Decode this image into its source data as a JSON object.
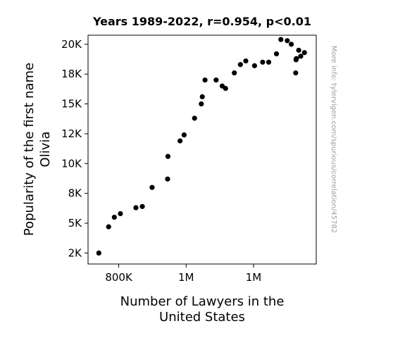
{
  "chart_data": {
    "type": "scatter",
    "title": "Years 1989-2022, r=0.954, p<0.01",
    "xlabel": [
      "Number of Lawyers in the",
      "United States"
    ],
    "ylabel": [
      "Popularity of the first name",
      "Olivia"
    ],
    "watermark": "More info: tylervigen.com/spurious/correlation/45782",
    "x_ticks": [
      {
        "value": 800000,
        "label": "800K"
      },
      {
        "value": 1000000,
        "label": "1M"
      },
      {
        "value": 1200000,
        "label": "1M"
      }
    ],
    "y_ticks": [
      {
        "value": 2500,
        "label": "2K"
      },
      {
        "value": 5000,
        "label": "5K"
      },
      {
        "value": 7500,
        "label": "8K"
      },
      {
        "value": 10000,
        "label": "10K"
      },
      {
        "value": 12500,
        "label": "12K"
      },
      {
        "value": 15000,
        "label": "15K"
      },
      {
        "value": 17500,
        "label": "18K"
      },
      {
        "value": 20000,
        "label": "20K"
      }
    ],
    "xlim": [
      709000,
      1386000
    ],
    "ylim": [
      1580,
      20760
    ],
    "marker_color": "#000000",
    "grid": false,
    "points": [
      {
        "x": 741000,
        "y": 2500
      },
      {
        "x": 770000,
        "y": 4700
      },
      {
        "x": 787000,
        "y": 5500
      },
      {
        "x": 805000,
        "y": 5800
      },
      {
        "x": 851000,
        "y": 6300
      },
      {
        "x": 870000,
        "y": 6400
      },
      {
        "x": 899000,
        "y": 8000
      },
      {
        "x": 945000,
        "y": 8700
      },
      {
        "x": 946000,
        "y": 10600
      },
      {
        "x": 982000,
        "y": 11900
      },
      {
        "x": 994000,
        "y": 12400
      },
      {
        "x": 1025000,
        "y": 13800
      },
      {
        "x": 1045000,
        "y": 15000
      },
      {
        "x": 1048000,
        "y": 15600
      },
      {
        "x": 1056000,
        "y": 17000
      },
      {
        "x": 1089000,
        "y": 17000
      },
      {
        "x": 1107000,
        "y": 16500
      },
      {
        "x": 1117000,
        "y": 16300
      },
      {
        "x": 1143000,
        "y": 17600
      },
      {
        "x": 1161000,
        "y": 18300
      },
      {
        "x": 1177000,
        "y": 18600
      },
      {
        "x": 1203000,
        "y": 18200
      },
      {
        "x": 1227000,
        "y": 18500
      },
      {
        "x": 1245000,
        "y": 18500
      },
      {
        "x": 1268000,
        "y": 19200
      },
      {
        "x": 1281000,
        "y": 20400
      },
      {
        "x": 1300000,
        "y": 20300
      },
      {
        "x": 1312000,
        "y": 20000
      },
      {
        "x": 1325000,
        "y": 17600
      },
      {
        "x": 1326000,
        "y": 18700
      },
      {
        "x": 1327000,
        "y": 18800
      },
      {
        "x": 1334000,
        "y": 19500
      },
      {
        "x": 1340000,
        "y": 19000
      },
      {
        "x": 1351000,
        "y": 19300
      }
    ]
  }
}
